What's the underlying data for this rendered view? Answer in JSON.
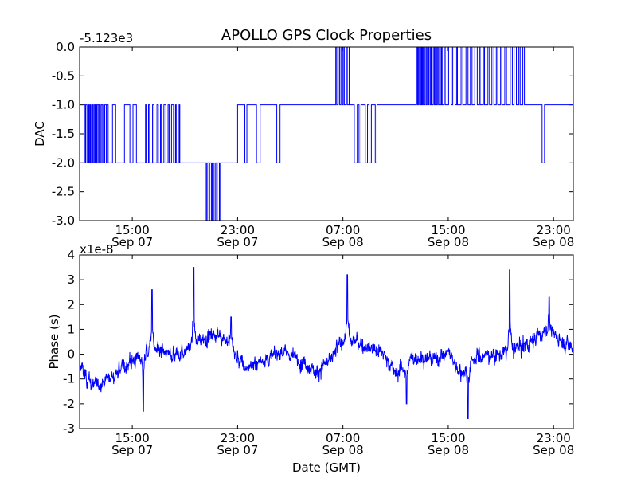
{
  "figure": {
    "title": "APOLLO GPS Clock Properties",
    "xlabel": "Date (GMT)",
    "line_color": "#0000ff"
  },
  "chart_data": [
    {
      "type": "line",
      "name": "dac-panel",
      "ylabel": "DAC",
      "offset_label": "-5.123e3",
      "xlim": [
        "2013-09-07 11:00",
        "2013-09-09 00:30"
      ],
      "ylim": [
        -3.0,
        0.0
      ],
      "yticks": [
        {
          "value": 0.0,
          "label": "0.0"
        },
        {
          "value": -0.5,
          "label": "-0.5"
        },
        {
          "value": -1.0,
          "label": "-1.0"
        },
        {
          "value": -1.5,
          "label": "-1.5"
        },
        {
          "value": -2.0,
          "label": "-2.0"
        },
        {
          "value": -2.5,
          "label": "-2.5"
        },
        {
          "value": -3.0,
          "label": "-3.0"
        }
      ],
      "xticks": [
        {
          "value": "2013-09-07 15:00",
          "time": "15:00",
          "date": "Sep 07"
        },
        {
          "value": "2013-09-07 23:00",
          "time": "23:00",
          "date": "Sep 07"
        },
        {
          "value": "2013-09-08 07:00",
          "time": "07:00",
          "date": "Sep 08"
        },
        {
          "value": "2013-09-08 15:00",
          "time": "15:00",
          "date": "Sep 08"
        },
        {
          "value": "2013-09-08 23:00",
          "time": "23:00",
          "date": "Sep 08"
        }
      ],
      "segments": [
        {
          "start": "2013-09-07 11:00",
          "end": "2013-09-07 11:20",
          "level": -2,
          "toggle_to": -1,
          "toggles": 0
        },
        {
          "start": "2013-09-07 11:20",
          "end": "2013-09-07 13:10",
          "level": -1,
          "toggle_to": -2,
          "toggles": 12
        },
        {
          "start": "2013-09-07 13:10",
          "end": "2013-09-07 15:50",
          "level": -2,
          "toggle_to": -1,
          "toggles": 3
        },
        {
          "start": "2013-09-07 15:50",
          "end": "2013-09-07 18:50",
          "level": -2,
          "toggle_to": -1,
          "toggles": 10
        },
        {
          "start": "2013-09-07 18:50",
          "end": "2013-09-07 20:30",
          "level": -2,
          "toggle_to": -1,
          "toggles": 0
        },
        {
          "start": "2013-09-07 20:30",
          "end": "2013-09-07 21:50",
          "level": -2,
          "toggle_to": -3,
          "toggles": 6
        },
        {
          "start": "2013-09-07 21:50",
          "end": "2013-09-07 23:00",
          "level": -2,
          "toggle_to": -1,
          "toggles": 0
        },
        {
          "start": "2013-09-07 23:00",
          "end": "2013-09-08 01:30",
          "level": -1,
          "toggle_to": -2,
          "toggles": 2
        },
        {
          "start": "2013-09-08 01:30",
          "end": "2013-09-08 03:00",
          "level": -1,
          "toggle_to": -2,
          "toggles": 1
        },
        {
          "start": "2013-09-08 03:00",
          "end": "2013-09-08 06:20",
          "level": -1,
          "toggle_to": -2,
          "toggles": 0
        },
        {
          "start": "2013-09-08 06:20",
          "end": "2013-09-08 07:40",
          "level": -1,
          "toggle_to": 0,
          "toggles": 6
        },
        {
          "start": "2013-09-08 07:40",
          "end": "2013-09-08 09:50",
          "level": -1,
          "toggle_to": -2,
          "toggles": 5
        },
        {
          "start": "2013-09-08 09:50",
          "end": "2013-09-08 12:30",
          "level": -1,
          "toggle_to": 0,
          "toggles": 0
        },
        {
          "start": "2013-09-08 12:30",
          "end": "2013-09-08 14:50",
          "level": -1,
          "toggle_to": 0,
          "toggles": 14
        },
        {
          "start": "2013-09-08 14:50",
          "end": "2013-09-08 21:00",
          "level": -1,
          "toggle_to": 0,
          "toggles": 18
        },
        {
          "start": "2013-09-08 21:00",
          "end": "2013-09-08 22:00",
          "level": -1,
          "toggle_to": -1,
          "toggles": 0
        },
        {
          "start": "2013-09-08 22:00",
          "end": "2013-09-08 22:30",
          "level": -1,
          "toggle_to": -2,
          "toggles": 1
        },
        {
          "start": "2013-09-08 22:30",
          "end": "2013-09-09 00:30",
          "level": -1,
          "toggle_to": -1,
          "toggles": 0
        }
      ]
    },
    {
      "type": "line",
      "name": "phase-panel",
      "ylabel": "Phase (s)",
      "offset_label": "x1e-8",
      "xlabel": "Date (GMT)",
      "xlim": [
        "2013-09-07 11:00",
        "2013-09-09 00:30"
      ],
      "ylim": [
        -3,
        4
      ],
      "yticks": [
        {
          "value": 4,
          "label": "4"
        },
        {
          "value": 3,
          "label": "3"
        },
        {
          "value": 2,
          "label": "2"
        },
        {
          "value": 1,
          "label": "1"
        },
        {
          "value": 0,
          "label": "0"
        },
        {
          "value": -1,
          "label": "-1"
        },
        {
          "value": -2,
          "label": "-2"
        },
        {
          "value": -3,
          "label": "-3"
        }
      ],
      "xticks": [
        {
          "value": "2013-09-07 15:00",
          "time": "15:00",
          "date": "Sep 07"
        },
        {
          "value": "2013-09-07 23:00",
          "time": "23:00",
          "date": "Sep 07"
        },
        {
          "value": "2013-09-08 07:00",
          "time": "07:00",
          "date": "Sep 08"
        },
        {
          "value": "2013-09-08 15:00",
          "time": "15:00",
          "date": "Sep 08"
        },
        {
          "value": "2013-09-08 23:00",
          "time": "23:00",
          "date": "Sep 08"
        }
      ],
      "trend": [
        {
          "x": "2013-09-07 11:00",
          "y": -0.5
        },
        {
          "x": "2013-09-07 12:00",
          "y": -1.3
        },
        {
          "x": "2013-09-07 13:30",
          "y": -0.9
        },
        {
          "x": "2013-09-07 15:00",
          "y": -0.3
        },
        {
          "x": "2013-09-07 16:30",
          "y": 0.2
        },
        {
          "x": "2013-09-07 18:00",
          "y": -0.1
        },
        {
          "x": "2013-09-07 19:30",
          "y": 0.3
        },
        {
          "x": "2013-09-07 21:00",
          "y": 0.8
        },
        {
          "x": "2013-09-07 22:00",
          "y": 0.7
        },
        {
          "x": "2013-09-07 23:30",
          "y": -0.6
        },
        {
          "x": "2013-09-08 01:00",
          "y": -0.2
        },
        {
          "x": "2013-09-08 02:30",
          "y": 0.1
        },
        {
          "x": "2013-09-08 04:00",
          "y": -0.3
        },
        {
          "x": "2013-09-08 05:00",
          "y": -0.7
        },
        {
          "x": "2013-09-08 06:00",
          "y": -0.3
        },
        {
          "x": "2013-09-08 07:00",
          "y": 0.6
        },
        {
          "x": "2013-09-08 08:00",
          "y": 0.5
        },
        {
          "x": "2013-09-08 10:00",
          "y": 0.1
        },
        {
          "x": "2013-09-08 11:00",
          "y": -0.8
        },
        {
          "x": "2013-09-08 12:30",
          "y": -0.1
        },
        {
          "x": "2013-09-08 14:00",
          "y": -0.2
        },
        {
          "x": "2013-09-08 15:00",
          "y": 0.1
        },
        {
          "x": "2013-09-08 16:00",
          "y": -0.8
        },
        {
          "x": "2013-09-08 17:00",
          "y": -0.1
        },
        {
          "x": "2013-09-08 19:00",
          "y": 0.0
        },
        {
          "x": "2013-09-08 21:00",
          "y": 0.4
        },
        {
          "x": "2013-09-08 22:30",
          "y": 1.0
        },
        {
          "x": "2013-09-08 23:30",
          "y": 0.6
        },
        {
          "x": "2013-09-09 00:30",
          "y": 0.3
        }
      ],
      "noise_amplitude": 0.45,
      "spikes": [
        {
          "x": "2013-09-07 15:50",
          "y": -2.3
        },
        {
          "x": "2013-09-07 16:30",
          "y": 2.6
        },
        {
          "x": "2013-09-07 19:40",
          "y": 3.5
        },
        {
          "x": "2013-09-07 22:30",
          "y": 1.5
        },
        {
          "x": "2013-09-08 07:20",
          "y": 3.2
        },
        {
          "x": "2013-09-08 11:50",
          "y": -2.0
        },
        {
          "x": "2013-09-08 16:30",
          "y": -2.6
        },
        {
          "x": "2013-09-08 19:40",
          "y": 3.4
        },
        {
          "x": "2013-09-08 22:40",
          "y": 2.3
        }
      ]
    }
  ]
}
